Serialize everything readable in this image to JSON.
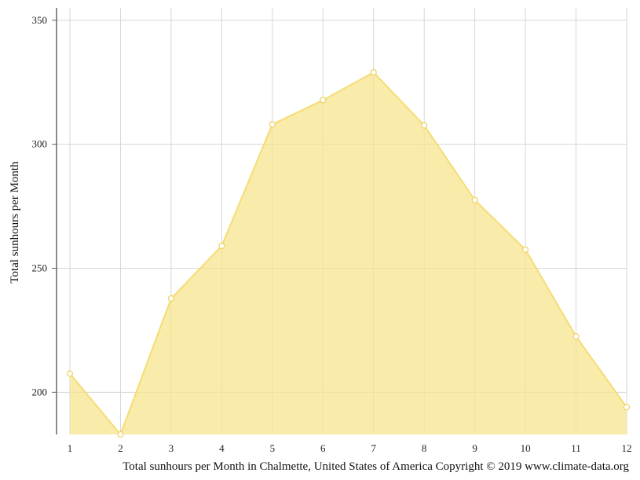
{
  "chart_data": {
    "type": "area",
    "x": [
      1,
      2,
      3,
      4,
      5,
      6,
      7,
      8,
      9,
      10,
      11,
      12
    ],
    "series": [
      {
        "values": [
          207.5,
          183,
          237.8,
          259,
          308,
          317.8,
          329,
          307.6,
          277.5,
          257.5,
          222.5,
          194
        ]
      }
    ],
    "ylabel": "Total sunhours per Month",
    "xlabel": "",
    "caption": "Total sunhours per Month in Chalmette, United States of America Copyright © 2019 www.climate-data.org",
    "yticks": [
      200,
      250,
      300,
      350
    ],
    "xticks": [
      "1",
      "2",
      "3",
      "4",
      "5",
      "6",
      "7",
      "8",
      "9",
      "10",
      "11",
      "12"
    ],
    "ylim": [
      183,
      355
    ],
    "xlim": [
      1,
      12
    ],
    "grid": true,
    "colors": {
      "fill": "#f7e48a",
      "line": "#f5dc74",
      "grid": "#d6d6d6",
      "axis": "#666666"
    }
  }
}
